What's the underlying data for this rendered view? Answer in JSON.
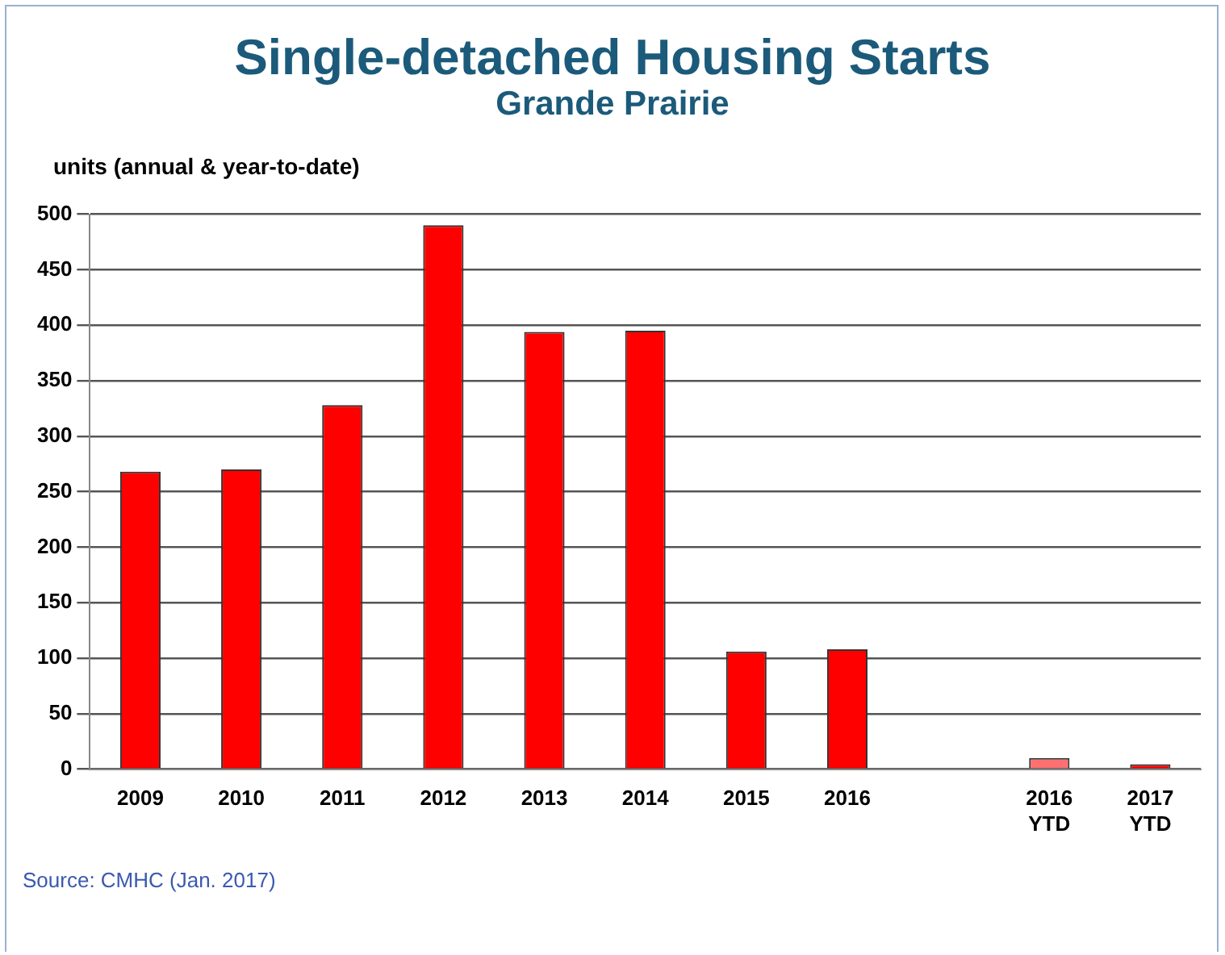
{
  "chart_data": {
    "type": "bar",
    "title": "Single-detached Housing Starts",
    "subtitle": "Grande Prairie",
    "ylabel": "units (annual & year-to-date)",
    "categories": [
      "2009",
      "2010",
      "2011",
      "2012",
      "2013",
      "2014",
      "2015",
      "2016",
      null,
      "2016 YTD",
      "2017 YTD"
    ],
    "values": [
      268,
      270,
      328,
      490,
      394,
      395,
      106,
      108,
      null,
      10,
      1
    ],
    "colors": [
      "#ff0000",
      "#ff0000",
      "#ff0000",
      "#ff0000",
      "#ff0000",
      "#ff0000",
      "#ff0000",
      "#ff0000",
      "#ff0000",
      "#ff7070",
      "#ff0000"
    ],
    "ylim": [
      0,
      500
    ],
    "yticks": [
      0,
      50,
      100,
      150,
      200,
      250,
      300,
      350,
      400,
      450,
      500
    ],
    "grid": "y",
    "legend": false,
    "annotations": [
      "Source: CMHC (Jan. 2017)"
    ]
  }
}
